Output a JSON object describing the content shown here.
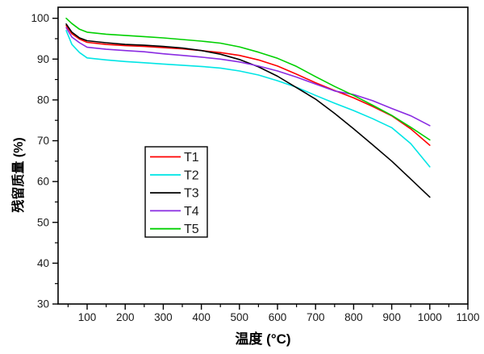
{
  "figure": {
    "background": "#ffffff",
    "frame_color": "#000000",
    "tick_label_color": "#1a1a1a"
  },
  "chart_data": {
    "type": "line",
    "title": "",
    "xlabel": "温度 (°C)",
    "ylabel": "残留质量 (%)",
    "xlim": [
      23.7,
      1100
    ],
    "ylim": [
      30,
      102.7
    ],
    "x_ticks": [
      100,
      200,
      300,
      400,
      500,
      600,
      700,
      800,
      900,
      1000,
      1100
    ],
    "x_minor_ticks": [
      50,
      150,
      250,
      350,
      450,
      550,
      650,
      750,
      850,
      950,
      1050
    ],
    "y_ticks": [
      30,
      40,
      50,
      60,
      70,
      80,
      90,
      100
    ],
    "y_minor_ticks": [
      35,
      45,
      55,
      65,
      75,
      85,
      95
    ],
    "grid": "off",
    "legend_position": "inside-left-center",
    "x": [
      45,
      60,
      80,
      100,
      150,
      200,
      250,
      300,
      350,
      400,
      450,
      500,
      550,
      600,
      650,
      700,
      750,
      800,
      850,
      900,
      950,
      1000
    ],
    "series": [
      {
        "name": "T1",
        "color": "#ff0000",
        "values": [
          98.2,
          96.2,
          94.9,
          94.1,
          93.6,
          93.3,
          93.1,
          92.8,
          92.5,
          92.1,
          91.6,
          90.9,
          89.8,
          88.3,
          86.3,
          84.2,
          82.3,
          80.5,
          78.4,
          76.1,
          72.9,
          68.9
        ]
      },
      {
        "name": "T2",
        "color": "#00e5e5",
        "values": [
          97.0,
          93.6,
          91.6,
          90.3,
          89.8,
          89.4,
          89.1,
          88.8,
          88.5,
          88.2,
          87.8,
          87.1,
          86.1,
          84.7,
          83.1,
          81.1,
          79.2,
          77.4,
          75.4,
          73.2,
          69.3,
          63.6
        ]
      },
      {
        "name": "T3",
        "color": "#000000",
        "values": [
          98.6,
          96.6,
          95.2,
          94.5,
          94.0,
          93.6,
          93.4,
          93.1,
          92.7,
          92.1,
          91.2,
          89.9,
          88.1,
          85.8,
          83.0,
          80.2,
          76.7,
          72.9,
          69.0,
          65.0,
          60.6,
          56.2
        ]
      },
      {
        "name": "T4",
        "color": "#8a2be2",
        "values": [
          97.7,
          95.4,
          94.0,
          92.9,
          92.4,
          92.1,
          91.8,
          91.3,
          90.9,
          90.5,
          90.0,
          89.3,
          88.3,
          87.1,
          85.6,
          83.9,
          82.2,
          81.3,
          79.8,
          77.9,
          76.1,
          73.7
        ]
      },
      {
        "name": "T5",
        "color": "#00d000",
        "values": [
          100.0,
          98.7,
          97.3,
          96.6,
          96.1,
          95.8,
          95.5,
          95.2,
          94.8,
          94.4,
          93.9,
          93.0,
          91.7,
          90.2,
          88.2,
          85.7,
          83.3,
          81.1,
          78.7,
          76.2,
          73.3,
          70.2
        ]
      }
    ]
  },
  "legend": {
    "entries": [
      {
        "label": "T1",
        "color": "#ff0000"
      },
      {
        "label": "T2",
        "color": "#00e5e5"
      },
      {
        "label": "T3",
        "color": "#000000"
      },
      {
        "label": "T4",
        "color": "#8a2be2"
      },
      {
        "label": "T5",
        "color": "#00d000"
      }
    ]
  }
}
